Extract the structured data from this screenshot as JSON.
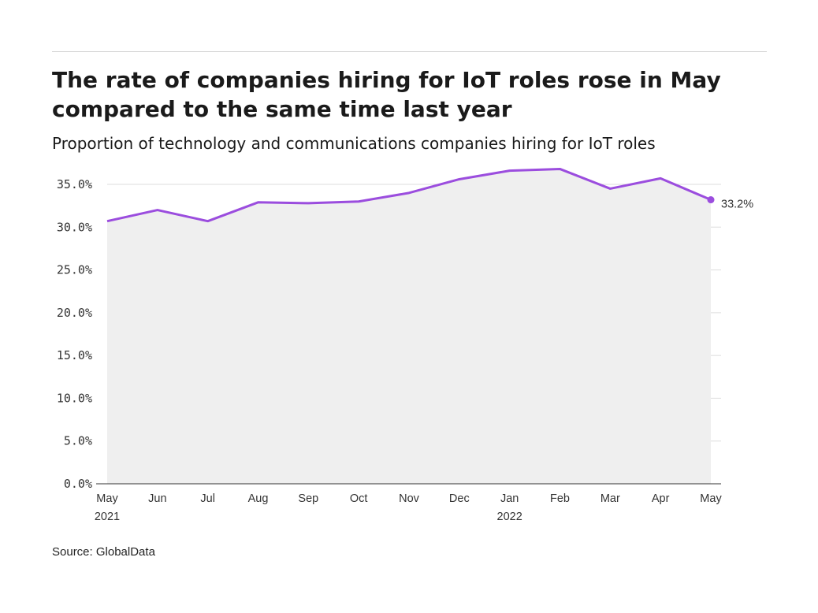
{
  "title": "The rate of companies hiring for IoT roles rose in May compared to the same time last year",
  "subtitle": "Proportion of technology and communications companies hiring for IoT roles",
  "source": "Source: GlobalData",
  "colors": {
    "line": "#9b4dde",
    "area": "#efefef",
    "grid": "#dddddd",
    "axis": "#333333"
  },
  "chart_data": {
    "type": "area",
    "title": "The rate of companies hiring for IoT roles rose in May compared to the same time last year",
    "subtitle": "Proportion of technology and communications companies hiring for IoT roles",
    "categories": [
      "May 2021",
      "Jun 2021",
      "Jul 2021",
      "Aug 2021",
      "Sep 2021",
      "Oct 2021",
      "Nov 2021",
      "Dec 2021",
      "Jan 2022",
      "Feb 2022",
      "Mar 2022",
      "Apr 2022",
      "May 2022"
    ],
    "x_tick_labels": [
      {
        "month": "May",
        "year": "2021"
      },
      {
        "month": "Jun",
        "year": ""
      },
      {
        "month": "Jul",
        "year": ""
      },
      {
        "month": "Aug",
        "year": ""
      },
      {
        "month": "Sep",
        "year": ""
      },
      {
        "month": "Oct",
        "year": ""
      },
      {
        "month": "Nov",
        "year": ""
      },
      {
        "month": "Dec",
        "year": ""
      },
      {
        "month": "Jan",
        "year": "2022"
      },
      {
        "month": "Feb",
        "year": ""
      },
      {
        "month": "Mar",
        "year": ""
      },
      {
        "month": "Apr",
        "year": ""
      },
      {
        "month": "May",
        "year": ""
      }
    ],
    "series": [
      {
        "values": [
          30.7,
          32.0,
          30.7,
          32.9,
          32.8,
          33.0,
          34.0,
          35.6,
          36.6,
          36.8,
          34.5,
          35.7,
          33.2
        ]
      }
    ],
    "end_label": "33.2%",
    "ylim": [
      0,
      37
    ],
    "y_ticks": [
      0,
      5,
      10,
      15,
      20,
      25,
      30,
      35
    ],
    "y_tick_labels": [
      "0.0%",
      "5.0%",
      "10.0%",
      "15.0%",
      "20.0%",
      "25.0%",
      "30.0%",
      "35.0%"
    ],
    "grid": true,
    "legend": "none"
  }
}
